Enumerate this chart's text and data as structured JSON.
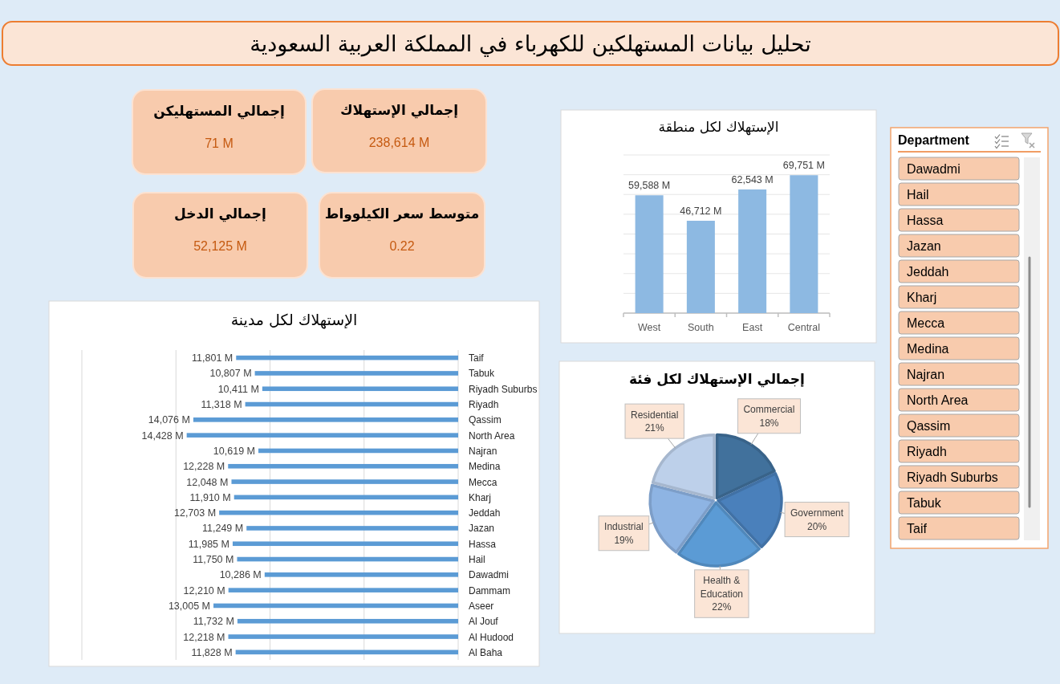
{
  "chart_data": [
    {
      "type": "other",
      "title": "تحليل بيانات المستهلكين للكهرباء في المملكة العربية السعودية"
    },
    {
      "type": "other",
      "title": "إجمالي المستهليكن",
      "annotations": [
        "71 M"
      ]
    },
    {
      "type": "other",
      "title": "إجمالي الإستهلاك",
      "annotations": [
        "238,614 M"
      ]
    },
    {
      "type": "other",
      "title": "إجمالي الدخل",
      "annotations": [
        "52,125 M"
      ]
    },
    {
      "type": "other",
      "title": "متوسط سعر الكيلوواط",
      "annotations": [
        "0.22"
      ]
    },
    {
      "type": "bar",
      "title": "الإستهلاك لكل منطقة",
      "categories": [
        "West",
        "South",
        "East",
        "Central"
      ],
      "values": [
        59588,
        46712,
        62543,
        69751
      ],
      "value_labels": [
        "59,588 M",
        "46,712 M",
        "62,543 M",
        "69,751 M"
      ],
      "color": "#8db9e2",
      "ylim": [
        0,
        80000
      ],
      "yticks": [
        {
          "value": 0,
          "label": null
        },
        {
          "value": 10000,
          "label": null
        },
        {
          "value": 20000,
          "label": null
        },
        {
          "value": 30000,
          "label": null
        },
        {
          "value": 40000,
          "label": null
        },
        {
          "value": 50000,
          "label": null
        },
        {
          "value": 60000,
          "label": null
        },
        {
          "value": 70000,
          "label": null
        },
        {
          "value": 80000,
          "label": null
        }
      ],
      "grid": "y",
      "tick_labels": "x"
    },
    {
      "type": "bar",
      "orientation": "horizontal",
      "title": "الإستهلاك لكل مدينة",
      "categories": [
        "Taif",
        "Tabuk",
        "Riyadh Suburbs",
        "Riyadh",
        "Qassim",
        "North Area",
        "Najran",
        "Medina",
        "Mecca",
        "Kharj",
        "Jeddah",
        "Jazan",
        "Hassa",
        "Hail",
        "Dawadmi",
        "Dammam",
        "Aseer",
        "Al Jouf",
        "Al Hudood",
        "Al Baha"
      ],
      "values": [
        11801,
        10807,
        10411,
        11318,
        14076,
        14428,
        10619,
        12228,
        12048,
        11910,
        12703,
        11249,
        11985,
        11750,
        10286,
        12210,
        13005,
        11732,
        12218,
        11828
      ],
      "value_labels": [
        "11,801 M",
        "10,807 M",
        "10,411 M",
        "11,318 M",
        "14,076 M",
        "14,428 M",
        "10,619 M",
        "12,228 M",
        "12,048 M",
        "11,910 M",
        "12,703 M",
        "11,249 M",
        "11,985 M",
        "11,750 M",
        "10,286 M",
        "12,210 M",
        "13,005 M",
        "11,732 M",
        "12,218 M",
        "11,828 M"
      ],
      "color": "#5b9bd5",
      "xlim": [
        20000,
        0
      ],
      "xticks": [
        {
          "value": 0,
          "label": null
        },
        {
          "value": 5000,
          "label": null
        },
        {
          "value": 10000,
          "label": null
        },
        {
          "value": 15000,
          "label": null
        },
        {
          "value": 20000,
          "label": null
        }
      ],
      "grid": "x",
      "tick_labels": "y"
    },
    {
      "type": "pie",
      "title": "إجمالي الإستهلاك لكل فئة",
      "categories": [
        "Commercial",
        "Government",
        "Health & Education",
        "Industrial",
        "Residential"
      ],
      "values": [
        18,
        20,
        22,
        19,
        21
      ],
      "value_labels": [
        "18%",
        "20%",
        "22%",
        "19%",
        "21%"
      ],
      "colors": [
        "#41719c",
        "#4a80bb",
        "#5b9bd5",
        "#8eb4e3",
        "#bdd0ea"
      ]
    },
    {
      "type": "other",
      "title": "Department",
      "annotations": [
        "Dawadmi",
        "Hail",
        "Hassa",
        "Jazan",
        "Jeddah",
        "Kharj",
        "Mecca",
        "Medina",
        "Najran",
        "North Area",
        "Qassim",
        "Riyadh",
        "Riyadh Suburbs",
        "Tabuk",
        "Taif"
      ]
    }
  ]
}
